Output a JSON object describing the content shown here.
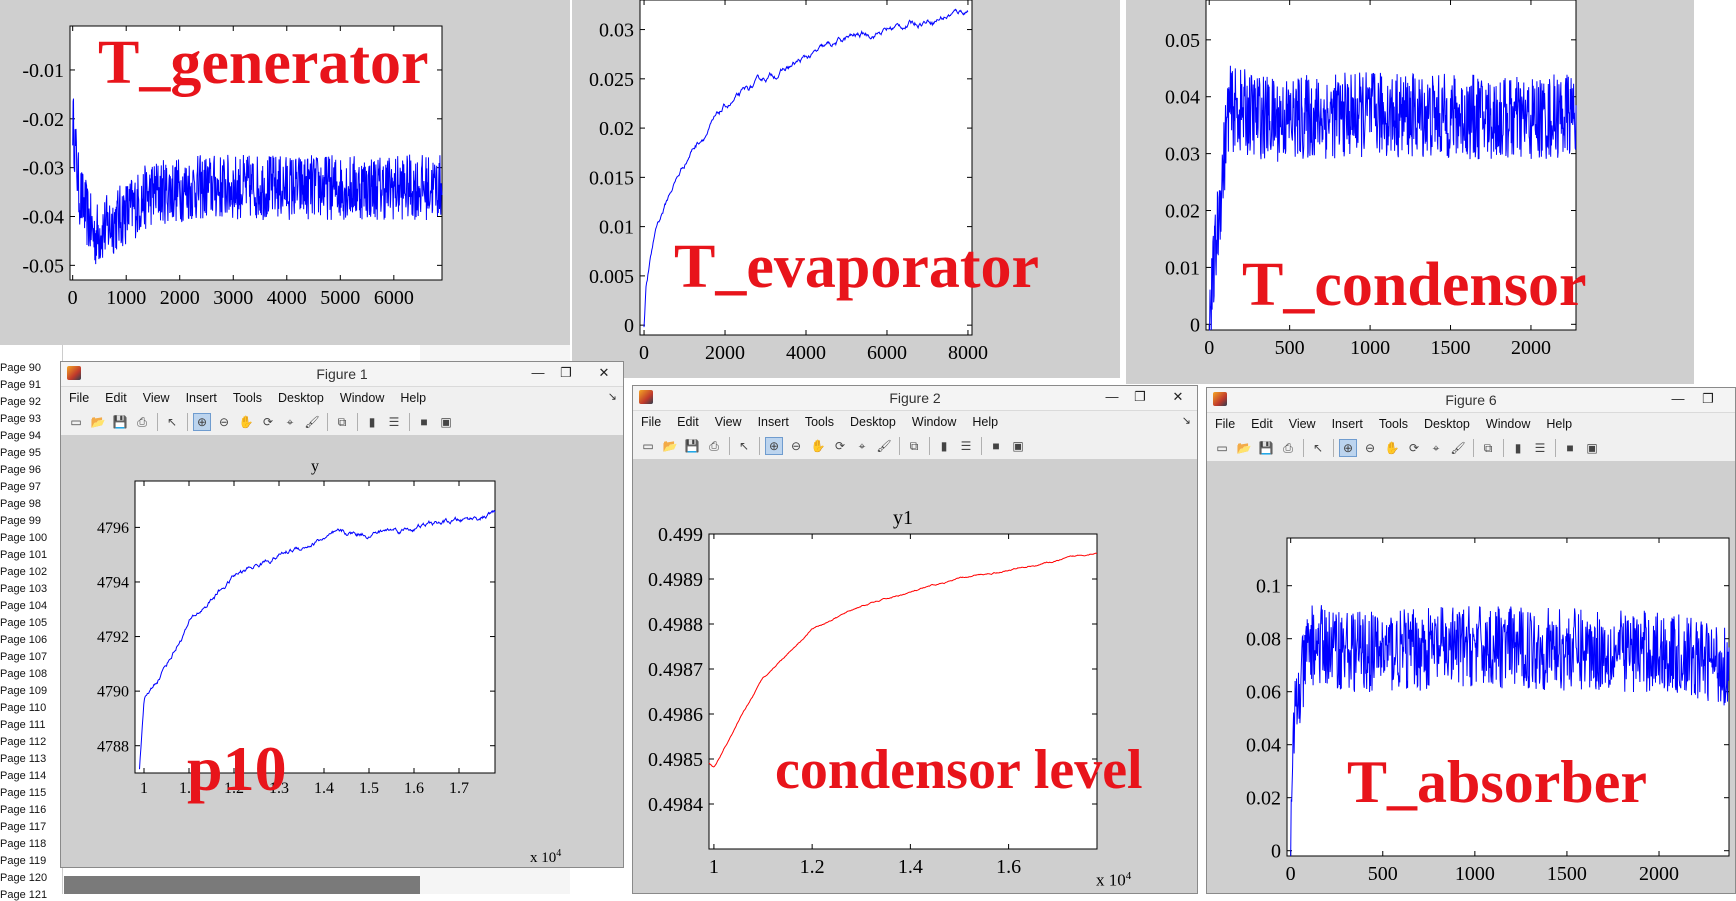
{
  "side_list": {
    "pages": [
      "Page 90",
      "Page 91",
      "Page 92",
      "Page 93",
      "Page 94",
      "Page 95",
      "Page 96",
      "Page 97",
      "Page 98",
      "Page 99",
      "Page 100",
      "Page 101",
      "Page 102",
      "Page 103",
      "Page 104",
      "Page 105",
      "Page 106",
      "Page 107",
      "Page 108",
      "Page 109",
      "Page 110",
      "Page 111",
      "Page 112",
      "Page 113",
      "Page 114",
      "Page 115",
      "Page 116",
      "Page 117",
      "Page 118",
      "Page 119",
      "Page 120",
      "Page 121"
    ]
  },
  "menus": [
    "File",
    "Edit",
    "View",
    "Insert",
    "Tools",
    "Desktop",
    "Window",
    "Help"
  ],
  "colors": {
    "blue_line": "#0000ff",
    "red_line": "#ff0000",
    "label_red": "#e8141b",
    "window_gray": "#cfcfcf"
  },
  "figures": {
    "fig1": {
      "title": "Figure 1",
      "axes_title": "y",
      "label": "p10",
      "exponent": "x 10",
      "exp_power": "4"
    },
    "fig2": {
      "title": "Figure 2",
      "axes_title": "y1",
      "label": "condensor level",
      "exponent": "x 10",
      "exp_power": "4"
    },
    "fig6": {
      "title": "Figure 6",
      "label": "T_absorber"
    }
  },
  "labels": {
    "t_generator": "T_generator",
    "t_evaporator": "T_evaporator",
    "t_condensor": "T_condensor"
  },
  "chart_data": [
    {
      "id": "t_generator",
      "type": "line",
      "title": "",
      "color": "#0000ff",
      "x_ticks": [
        0,
        1000,
        2000,
        3000,
        4000,
        5000,
        6000
      ],
      "y_ticks": [
        -0.05,
        -0.04,
        -0.03,
        -0.02,
        -0.01
      ],
      "xlim": [
        -50,
        6900
      ],
      "ylim": [
        -0.053,
        -0.001
      ],
      "noisy": true,
      "trend_x": [
        0,
        120,
        400,
        900,
        1500,
        2500,
        6900
      ],
      "trend_y": [
        -0.02,
        -0.035,
        -0.044,
        -0.04,
        -0.035,
        -0.034,
        -0.034
      ]
    },
    {
      "id": "t_evaporator",
      "type": "line",
      "title": "",
      "color": "#0000ff",
      "x_ticks": [
        0,
        2000,
        4000,
        6000,
        8000
      ],
      "y_ticks": [
        0,
        0.005,
        0.01,
        0.015,
        0.02,
        0.025,
        0.03
      ],
      "xlim": [
        -100,
        8100
      ],
      "ylim": [
        -0.001,
        0.033
      ],
      "trend_x": [
        0,
        50,
        300,
        700,
        1200,
        2000,
        3000,
        4000,
        5000,
        6000,
        7000,
        8000
      ],
      "trend_y": [
        0,
        0.004,
        0.01,
        0.014,
        0.018,
        0.022,
        0.025,
        0.027,
        0.029,
        0.03,
        0.031,
        0.032
      ]
    },
    {
      "id": "t_condensor",
      "type": "line",
      "title": "",
      "color": "#0000ff",
      "x_ticks": [
        0,
        500,
        1000,
        1500,
        2000
      ],
      "y_ticks": [
        0,
        0.01,
        0.02,
        0.03,
        0.04,
        0.05
      ],
      "xlim": [
        -20,
        2280
      ],
      "ylim": [
        -0.001,
        0.057
      ],
      "noisy": true,
      "trend_x": [
        0,
        30,
        120,
        400,
        1000,
        2000,
        2280
      ],
      "trend_y": [
        0,
        0.01,
        0.038,
        0.036,
        0.037,
        0.036,
        0.037
      ]
    },
    {
      "id": "p10",
      "type": "line",
      "title": "y",
      "color": "#0000ff",
      "x_ticks": [
        1,
        1.1,
        1.2,
        1.3,
        1.4,
        1.5,
        1.6,
        1.7
      ],
      "x_tick_labels": [
        "1",
        "1.1",
        "1.2",
        "1.3",
        "1.4",
        "1.5",
        "1.6",
        "1.7"
      ],
      "y_ticks": [
        4788,
        4790,
        4792,
        4794,
        4796
      ],
      "xlim": [
        0.98,
        1.78
      ],
      "ylim": [
        4787,
        4797.7
      ],
      "trend_x": [
        0.99,
        1.0,
        1.05,
        1.1,
        1.2,
        1.3,
        1.4,
        1.5,
        1.6,
        1.7,
        1.78
      ],
      "trend_y": [
        4787.2,
        4789.5,
        4791.0,
        4792.5,
        4794.2,
        4795.0,
        4795.6,
        4795.8,
        4796.0,
        4796.2,
        4796.5
      ]
    },
    {
      "id": "condensor_level",
      "type": "line",
      "title": "y1",
      "color": "#ff0000",
      "x_ticks": [
        1,
        1.2,
        1.4,
        1.6
      ],
      "x_tick_labels": [
        "1",
        "1.2",
        "1.4",
        "1.6"
      ],
      "y_ticks": [
        0.4984,
        0.4985,
        0.4986,
        0.4987,
        0.4988,
        0.4989,
        0.499
      ],
      "y_tick_labels": [
        "0.4984",
        "0.4985",
        "0.4986",
        "0.4987",
        "0.4988",
        "0.4989",
        "0.499"
      ],
      "xlim": [
        0.99,
        1.78
      ],
      "ylim": [
        0.4983,
        0.499
      ],
      "trend_x": [
        0.99,
        1.0,
        1.05,
        1.1,
        1.2,
        1.3,
        1.4,
        1.5,
        1.6,
        1.7,
        1.78
      ],
      "trend_y": [
        0.49849,
        0.49848,
        0.49858,
        0.49868,
        0.49879,
        0.49884,
        0.49887,
        0.4989,
        0.49892,
        0.49894,
        0.49896
      ]
    },
    {
      "id": "t_absorber",
      "type": "line",
      "title": "",
      "color": "#0000ff",
      "x_ticks": [
        0,
        500,
        1000,
        1500,
        2000
      ],
      "y_ticks": [
        0,
        0.02,
        0.04,
        0.06,
        0.08,
        0.1
      ],
      "xlim": [
        -20,
        2380
      ],
      "ylim": [
        -0.002,
        0.118
      ],
      "noisy": true,
      "trend_x": [
        0,
        20,
        100,
        400,
        1000,
        2000,
        2380
      ],
      "trend_y": [
        0,
        0.05,
        0.078,
        0.075,
        0.077,
        0.075,
        0.07
      ]
    }
  ]
}
